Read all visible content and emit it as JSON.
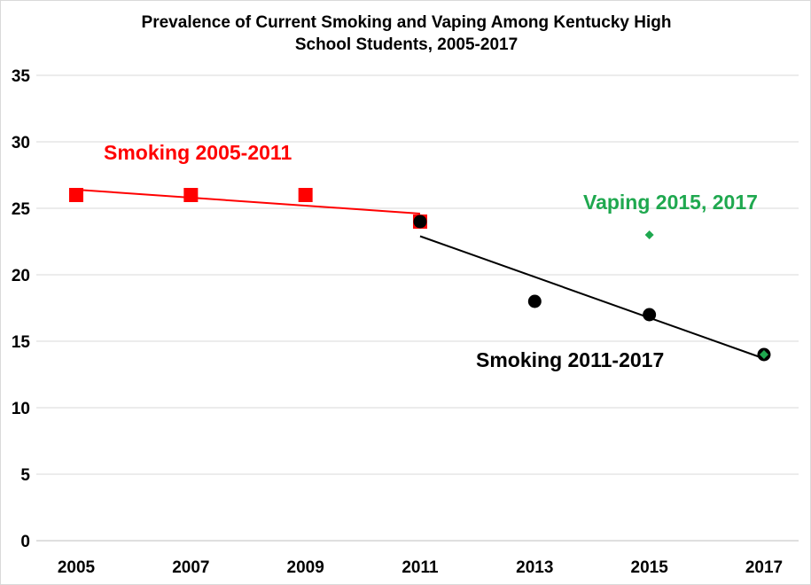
{
  "chart_data": {
    "type": "scatter",
    "title": "Prevalence of Current Smoking and Vaping Among Kentucky High School Students, 2005-2017",
    "title_lines": [
      "Prevalence of Current Smoking and Vaping Among Kentucky High",
      "School Students, 2005-2017"
    ],
    "xlabel": "",
    "ylabel": "",
    "ylim": [
      0,
      35
    ],
    "yticks": [
      0,
      5,
      10,
      15,
      20,
      25,
      30,
      35
    ],
    "categories": [
      "2005",
      "2007",
      "2009",
      "2011",
      "2013",
      "2015",
      "2017"
    ],
    "grid": true,
    "legend": "none",
    "series": [
      {
        "name": "Smoking 2005-2011",
        "color": "#ff0000",
        "marker": "square",
        "x": [
          "2005",
          "2007",
          "2009",
          "2011"
        ],
        "values": [
          26,
          26,
          26,
          24
        ],
        "trendline": {
          "x": [
            "2005",
            "2011"
          ],
          "values": [
            26.4,
            24.6
          ]
        }
      },
      {
        "name": "Smoking 2011-2017",
        "color": "#000000",
        "marker": "circle",
        "x": [
          "2011",
          "2013",
          "2015",
          "2017"
        ],
        "values": [
          24,
          18,
          17,
          14
        ],
        "trendline": {
          "x": [
            "2011",
            "2017"
          ],
          "values": [
            22.9,
            13.7
          ]
        }
      },
      {
        "name": "Vaping 2015, 2017",
        "color": "#1fa84f",
        "marker": "diamond",
        "x": [
          "2015",
          "2017"
        ],
        "values": [
          23,
          14
        ]
      }
    ]
  }
}
